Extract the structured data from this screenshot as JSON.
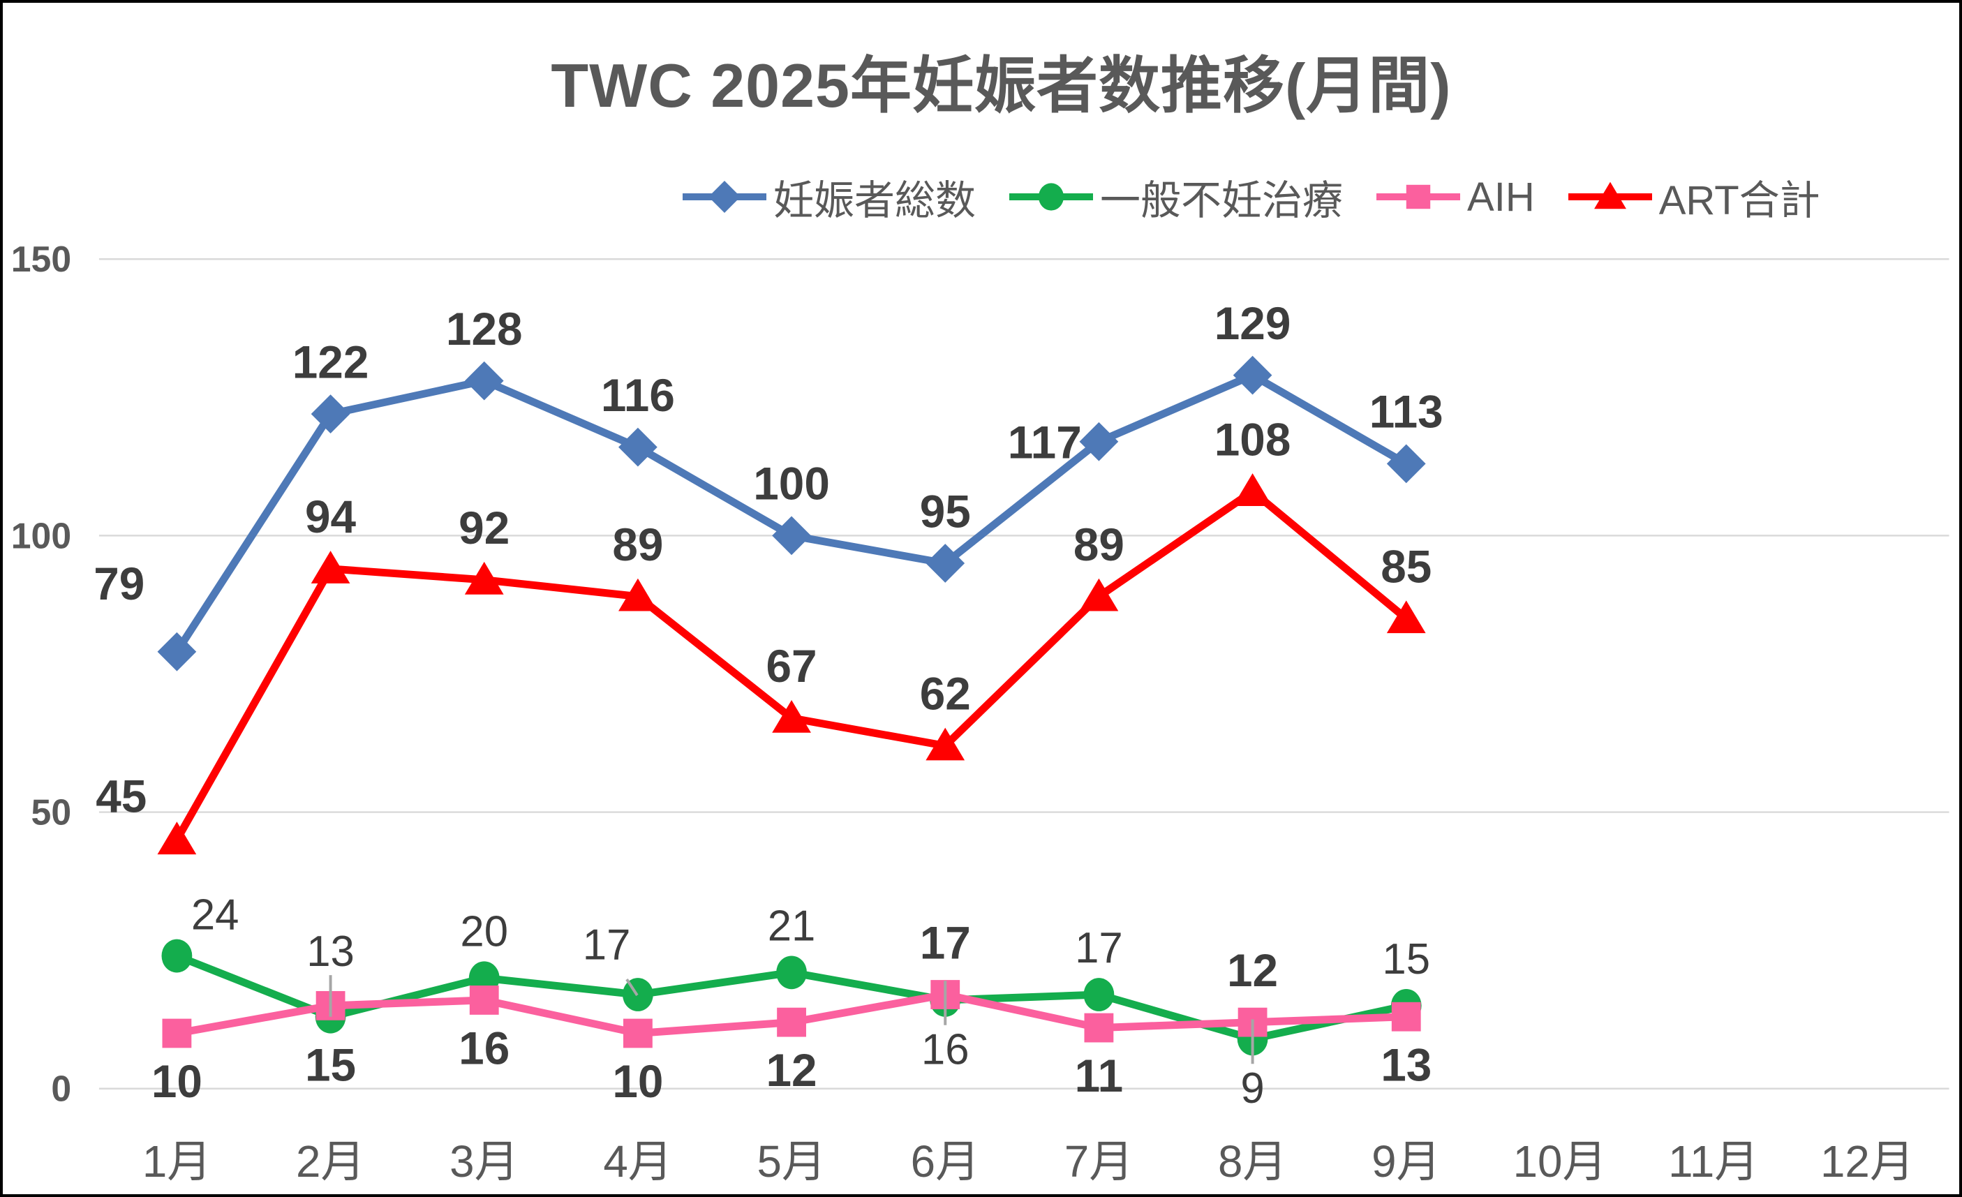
{
  "chart_data": {
    "type": "line",
    "title": "TWC 2025年妊娠者数推移(月間)",
    "categories": [
      "1月",
      "2月",
      "3月",
      "4月",
      "5月",
      "6月",
      "7月",
      "8月",
      "9月",
      "10月",
      "11月",
      "12月"
    ],
    "ylim": [
      0,
      150
    ],
    "yticks": [
      0,
      50,
      100,
      150
    ],
    "grid": true,
    "legend_position": "top",
    "colors": {
      "axis_text": "#595959",
      "gridline": "#d9d9d9",
      "data_label": "#3d3d3d",
      "leader_line": "#a6a6a6",
      "frame_border": "#000000"
    },
    "series": [
      {
        "name": "妊娠者総数",
        "color": "#4e79b7",
        "marker": "diamond",
        "label_weight": "bold",
        "values": [
          79,
          122,
          128,
          116,
          100,
          95,
          117,
          129,
          113,
          null,
          null,
          null
        ],
        "label_pos": [
          {
            "dx": -83,
            "dy": -75
          },
          "u",
          "u",
          "u",
          "u",
          "u",
          {
            "dx": -78,
            "dy": 24
          },
          "u",
          "u"
        ]
      },
      {
        "name": "一般不妊治療",
        "color": "#14ad4d",
        "marker": "circle",
        "label_weight": "normal",
        "values": [
          24,
          13,
          20,
          17,
          21,
          16,
          17,
          9,
          15,
          null,
          null,
          null
        ],
        "label_pos": [
          {
            "dx": 55,
            "dy": -38
          },
          "uF",
          "u",
          "uL",
          "u",
          "dL",
          "u",
          "dL",
          "u"
        ]
      },
      {
        "name": "AIH",
        "color": "#fb609e",
        "marker": "square",
        "label_weight": "bold",
        "values": [
          10,
          15,
          16,
          10,
          12,
          17,
          11,
          12,
          13,
          null,
          null,
          null
        ],
        "label_pos": [
          "d",
          "d",
          "d",
          "d",
          "d",
          "U",
          "d",
          "U",
          "d"
        ]
      },
      {
        "name": "ART合計",
        "color": "#ff0000",
        "marker": "triangle",
        "label_weight": "bold",
        "values": [
          45,
          94,
          92,
          89,
          67,
          62,
          89,
          108,
          85,
          null,
          null,
          null
        ],
        "label_pos": [
          {
            "dx": -80,
            "dy": -40
          },
          "u",
          "u",
          "u",
          "u",
          "u",
          "u",
          "u",
          "u"
        ]
      }
    ]
  }
}
